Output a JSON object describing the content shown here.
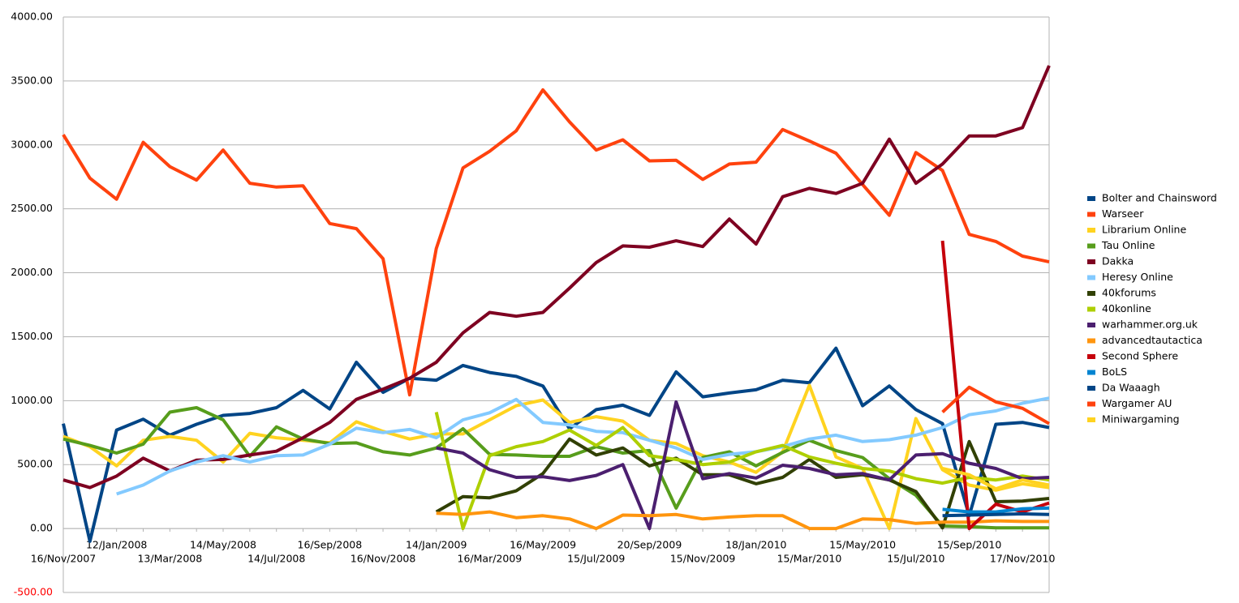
{
  "chart_data": {
    "type": "line",
    "categories": [
      "16/Nov/2007",
      null,
      "12/Jan/2008",
      null,
      "13/Mar/2008",
      null,
      "14/May/2008",
      null,
      "14/Jul/2008",
      null,
      "16/Sep/2008",
      null,
      "16/Nov/2008",
      null,
      "14/Jan/2009",
      null,
      "16/Mar/2009",
      null,
      "16/May/2009",
      null,
      "15/Jul/2009",
      null,
      "20/Sep/2009",
      null,
      "15/Nov/2009",
      null,
      "18/Jan/2010",
      null,
      "15/Mar/2010",
      null,
      "15/May/2010",
      null,
      "15/Jul/2010",
      null,
      "15/Sep/2010",
      null,
      "17/Nov/2010",
      null
    ],
    "ylim": [
      -500,
      4000
    ],
    "yticks": [
      {
        "value": -500,
        "label": "-500.00"
      },
      {
        "value": 0,
        "label": "0.00"
      },
      {
        "value": 500,
        "label": "500.00"
      },
      {
        "value": 1000,
        "label": "1000.00"
      },
      {
        "value": 1500,
        "label": "1500.00"
      },
      {
        "value": 2000,
        "label": "2000.00"
      },
      {
        "value": 2500,
        "label": "2500.00"
      },
      {
        "value": 3000,
        "label": "3000.00"
      },
      {
        "value": 3500,
        "label": "3500.00"
      },
      {
        "value": 4000,
        "label": "4000.00"
      }
    ],
    "grid": true,
    "legend": "right",
    "series": [
      {
        "name": "Bolter and Chainsword",
        "color": "#004586",
        "values": [
          820,
          -100,
          770,
          855,
          730,
          815,
          885,
          900,
          945,
          1080,
          935,
          1300,
          1065,
          1175,
          1160,
          1275,
          1220,
          1190,
          1115,
          780,
          930,
          965,
          885,
          1225,
          1030,
          1060,
          1085,
          1160,
          1140,
          1410,
          960,
          1115,
          930,
          820,
          100,
          815,
          830,
          790
        ]
      },
      {
        "name": "Warseer",
        "color": "#ff420e",
        "values": [
          3080,
          2740,
          2575,
          3020,
          2830,
          2725,
          2960,
          2700,
          2670,
          2680,
          2385,
          2345,
          2110,
          1045,
          2190,
          2820,
          2950,
          3110,
          3430,
          3180,
          2960,
          3040,
          2875,
          2880,
          2730,
          2850,
          2865,
          3120,
          3030,
          2935,
          2690,
          2450,
          2940,
          2800,
          2300,
          2245,
          2130,
          2085
        ]
      },
      {
        "name": "Librarium Online",
        "color": "#ffd320",
        "values": [
          720,
          640,
          490,
          690,
          720,
          690,
          520,
          745,
          710,
          690,
          670,
          835,
          760,
          700,
          740,
          740,
          850,
          960,
          1005,
          830,
          875,
          840,
          690,
          665,
          570,
          520,
          440,
          600,
          1120,
          560,
          470,
          0,
          860,
          460,
          340,
          300,
          350,
          320
        ]
      },
      {
        "name": "Tau Online",
        "color": "#579d1c",
        "values": [
          700,
          650,
          590,
          660,
          910,
          945,
          850,
          565,
          795,
          700,
          665,
          670,
          600,
          575,
          630,
          780,
          580,
          575,
          565,
          565,
          640,
          590,
          610,
          160,
          555,
          600,
          490,
          595,
          690,
          610,
          555,
          390,
          260,
          20,
          15,
          5,
          5,
          5
        ]
      },
      {
        "name": "Dakka",
        "color": "#7e0021",
        "values": [
          380,
          320,
          410,
          550,
          450,
          535,
          540,
          575,
          605,
          710,
          830,
          1010,
          1090,
          1175,
          1300,
          1530,
          1690,
          1660,
          1690,
          1880,
          2080,
          2210,
          2200,
          2250,
          2205,
          2420,
          2225,
          2595,
          2660,
          2620,
          2700,
          3045,
          2700,
          2850,
          3070,
          3070,
          3135,
          3620
        ]
      },
      {
        "name": "Heresy Online",
        "color": "#83caff",
        "values": [
          null,
          null,
          270,
          340,
          450,
          520,
          570,
          520,
          570,
          575,
          660,
          785,
          750,
          775,
          710,
          850,
          905,
          1010,
          830,
          810,
          760,
          750,
          690,
          630,
          540,
          580,
          600,
          640,
          700,
          730,
          680,
          695,
          730,
          790,
          890,
          920,
          980,
          1020
        ]
      },
      {
        "name": "40kforums",
        "color": "#314004",
        "values": [
          null,
          null,
          null,
          null,
          null,
          null,
          null,
          null,
          null,
          null,
          null,
          null,
          null,
          null,
          130,
          250,
          240,
          295,
          430,
          700,
          575,
          630,
          490,
          550,
          420,
          420,
          350,
          400,
          540,
          400,
          420,
          380,
          290,
          5,
          680,
          210,
          215,
          235
        ]
      },
      {
        "name": "40konline",
        "color": "#aecf00",
        "values": [
          null,
          null,
          null,
          null,
          null,
          null,
          null,
          null,
          null,
          null,
          null,
          null,
          null,
          null,
          910,
          0,
          570,
          640,
          680,
          770,
          650,
          790,
          570,
          540,
          500,
          520,
          600,
          650,
          560,
          510,
          470,
          450,
          390,
          355,
          400,
          380,
          410,
          380
        ]
      },
      {
        "name": "warhammer.org.uk",
        "color": "#4b1f6f",
        "values": [
          null,
          null,
          null,
          null,
          null,
          null,
          null,
          null,
          null,
          null,
          null,
          null,
          null,
          null,
          630,
          590,
          460,
          400,
          405,
          375,
          415,
          500,
          0,
          990,
          390,
          430,
          395,
          495,
          470,
          420,
          430,
          380,
          575,
          585,
          510,
          470,
          390,
          400
        ]
      },
      {
        "name": "advancedtautactica",
        "color": "#ff950e",
        "values": [
          null,
          null,
          null,
          null,
          null,
          null,
          null,
          null,
          null,
          null,
          null,
          null,
          null,
          null,
          120,
          110,
          130,
          85,
          100,
          75,
          0,
          105,
          100,
          110,
          75,
          90,
          100,
          100,
          0,
          0,
          75,
          70,
          40,
          50,
          50,
          60,
          55,
          55
        ]
      },
      {
        "name": "Second Sphere",
        "color": "#c5000b",
        "values": [
          null,
          null,
          null,
          null,
          null,
          null,
          null,
          null,
          null,
          null,
          null,
          null,
          null,
          null,
          null,
          null,
          null,
          null,
          null,
          null,
          null,
          null,
          null,
          null,
          null,
          null,
          null,
          null,
          null,
          null,
          null,
          null,
          null,
          2250,
          0,
          190,
          130,
          200
        ]
      },
      {
        "name": "BoLS",
        "color": "#0084d1",
        "values": [
          null,
          null,
          null,
          null,
          null,
          null,
          null,
          null,
          null,
          null,
          null,
          null,
          null,
          null,
          null,
          null,
          null,
          null,
          null,
          null,
          null,
          null,
          null,
          null,
          null,
          null,
          null,
          null,
          null,
          null,
          null,
          null,
          null,
          150,
          130,
          130,
          155,
          160
        ]
      },
      {
        "name": "Da Waaagh",
        "color": "#004586",
        "values": [
          null,
          null,
          null,
          null,
          null,
          null,
          null,
          null,
          null,
          null,
          null,
          null,
          null,
          null,
          null,
          null,
          null,
          null,
          null,
          null,
          null,
          null,
          null,
          null,
          null,
          null,
          null,
          null,
          null,
          null,
          null,
          null,
          null,
          100,
          105,
          110,
          115,
          110
        ]
      },
      {
        "name": "Wargamer AU",
        "color": "#ff420e",
        "values": [
          null,
          null,
          null,
          null,
          null,
          null,
          null,
          null,
          null,
          null,
          null,
          null,
          null,
          null,
          null,
          null,
          null,
          null,
          null,
          null,
          null,
          null,
          null,
          null,
          null,
          null,
          null,
          null,
          null,
          null,
          null,
          null,
          null,
          910,
          1105,
          990,
          940,
          820
        ]
      },
      {
        "name": "Miniwargaming",
        "color": "#ffd320",
        "values": [
          null,
          null,
          null,
          null,
          null,
          null,
          null,
          null,
          null,
          null,
          null,
          null,
          null,
          null,
          null,
          null,
          null,
          null,
          null,
          null,
          null,
          null,
          null,
          null,
          null,
          null,
          null,
          null,
          null,
          null,
          null,
          null,
          null,
          470,
          420,
          310,
          380,
          340
        ]
      }
    ]
  }
}
